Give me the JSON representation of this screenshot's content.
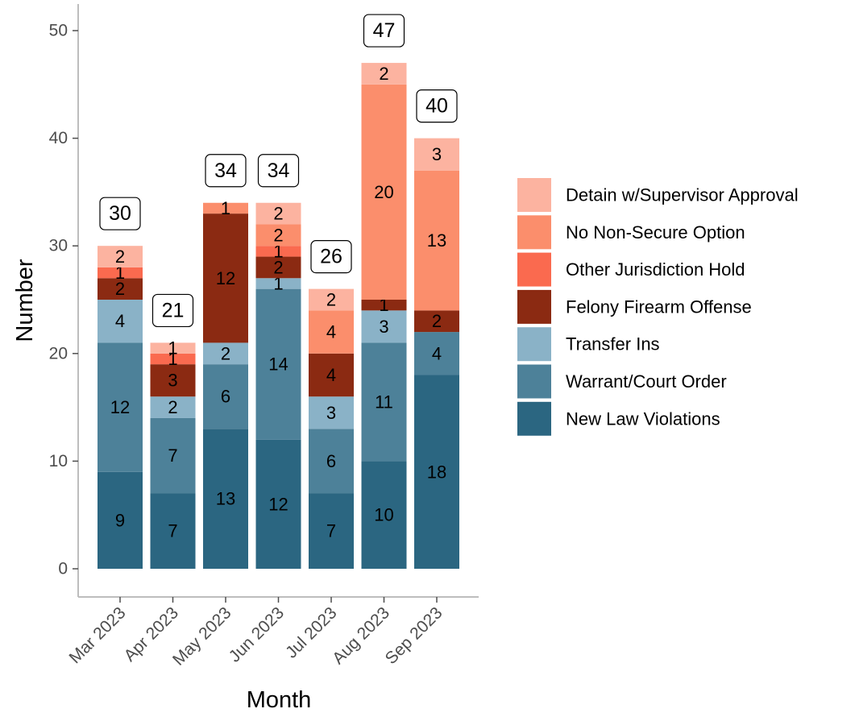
{
  "chart_data": {
    "type": "bar",
    "stacked": true,
    "categories": [
      "Mar 2023",
      "Apr 2023",
      "May 2023",
      "Jun 2023",
      "Jul 2023",
      "Aug 2023",
      "Sep 2023"
    ],
    "totals": [
      30,
      21,
      34,
      34,
      26,
      47,
      40
    ],
    "series": [
      {
        "name": "New Law Violations",
        "color": "#2b6681",
        "values": [
          9,
          7,
          13,
          12,
          7,
          10,
          18
        ]
      },
      {
        "name": "Warrant/Court Order",
        "color": "#4d8199",
        "values": [
          12,
          7,
          6,
          14,
          6,
          11,
          4
        ]
      },
      {
        "name": "Transfer Ins",
        "color": "#8ab2c7",
        "values": [
          4,
          2,
          2,
          1,
          3,
          3,
          0
        ]
      },
      {
        "name": "Felony Firearm Offense",
        "color": "#8b2a12",
        "values": [
          2,
          3,
          12,
          2,
          4,
          1,
          2
        ]
      },
      {
        "name": "Other Jurisdiction Hold",
        "color": "#fa6a4f",
        "values": [
          1,
          1,
          0,
          1,
          0,
          0,
          0
        ]
      },
      {
        "name": "No Non-Secure Option",
        "color": "#fb8e6c",
        "values": [
          0,
          0,
          1,
          2,
          4,
          20,
          13
        ]
      },
      {
        "name": "Detain w/Supervisor Approval",
        "color": "#fcb3a0",
        "values": [
          2,
          1,
          0,
          2,
          2,
          2,
          3
        ]
      }
    ],
    "legend_order": [
      "Detain w/Supervisor Approval",
      "No Non-Secure Option",
      "Other Jurisdiction Hold",
      "Felony Firearm Offense",
      "Transfer Ins",
      "Warrant/Court Order",
      "New Law Violations"
    ],
    "yticks": [
      0,
      10,
      20,
      30,
      40,
      50
    ],
    "ylim": [
      0,
      52
    ],
    "xlabel": "Month",
    "ylabel": "Number",
    "legend_position": "right",
    "grid": false
  }
}
